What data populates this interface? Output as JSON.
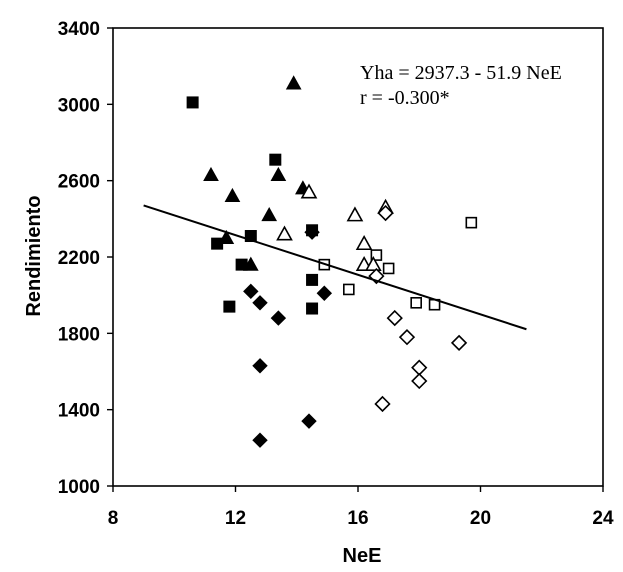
{
  "chart_data": {
    "type": "scatter",
    "xlabel": "NeE",
    "ylabel": "Rendimiento",
    "xlim": [
      8,
      24
    ],
    "ylim": [
      1000,
      3400
    ],
    "xticks": [
      "8",
      "12",
      "16",
      "20",
      "24"
    ],
    "yticks": [
      "1000",
      "1400",
      "1800",
      "2200",
      "2600",
      "3000",
      "3400"
    ],
    "grid": false,
    "annotations": [
      "Yha = 2937.3 - 51.9 NeE",
      "r = -0.300*"
    ],
    "regression": {
      "intercept": 2937.3,
      "slope": -51.9,
      "x_range": [
        9,
        21.5
      ]
    },
    "series": [
      {
        "marker": "filled-square",
        "points": [
          [
            10.6,
            3010
          ],
          [
            11.4,
            2270
          ],
          [
            11.8,
            1940
          ],
          [
            12.2,
            2160
          ],
          [
            12.5,
            2310
          ],
          [
            13.3,
            2710
          ],
          [
            14.5,
            2080
          ],
          [
            14.5,
            1930
          ],
          [
            14.5,
            2340
          ]
        ]
      },
      {
        "marker": "filled-triangle",
        "points": [
          [
            11.2,
            2630
          ],
          [
            11.7,
            2300
          ],
          [
            11.9,
            2520
          ],
          [
            12.5,
            2160
          ],
          [
            13.1,
            2420
          ],
          [
            13.4,
            2630
          ],
          [
            13.9,
            3110
          ],
          [
            14.2,
            2560
          ]
        ]
      },
      {
        "marker": "filled-diamond",
        "points": [
          [
            12.5,
            2020
          ],
          [
            12.8,
            1960
          ],
          [
            12.8,
            1630
          ],
          [
            12.8,
            1240
          ],
          [
            13.4,
            1880
          ],
          [
            14.4,
            1340
          ],
          [
            14.5,
            2330
          ],
          [
            14.9,
            2010
          ]
        ]
      },
      {
        "marker": "open-square",
        "points": [
          [
            14.9,
            2160
          ],
          [
            15.7,
            2030
          ],
          [
            16.6,
            2210
          ],
          [
            17.0,
            2140
          ],
          [
            17.9,
            1960
          ],
          [
            18.5,
            1950
          ],
          [
            19.7,
            2380
          ]
        ]
      },
      {
        "marker": "open-triangle",
        "points": [
          [
            13.6,
            2320
          ],
          [
            14.4,
            2540
          ],
          [
            15.9,
            2420
          ],
          [
            16.2,
            2270
          ],
          [
            16.2,
            2160
          ],
          [
            16.5,
            2160
          ],
          [
            16.9,
            2460
          ]
        ]
      },
      {
        "marker": "open-diamond",
        "points": [
          [
            16.6,
            2100
          ],
          [
            16.9,
            2430
          ],
          [
            17.2,
            1880
          ],
          [
            17.6,
            1780
          ],
          [
            16.8,
            1430
          ],
          [
            18.0,
            1620
          ],
          [
            18.0,
            1550
          ],
          [
            19.3,
            1750
          ]
        ]
      }
    ]
  }
}
